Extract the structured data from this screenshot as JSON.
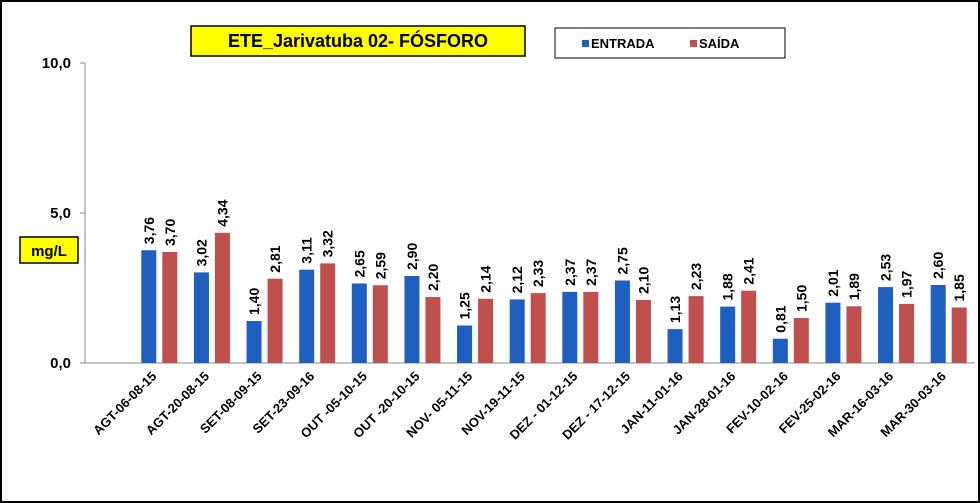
{
  "chart_data": {
    "type": "bar",
    "title": "ETE_Jarivatuba 02- FÓSFORO",
    "y_label": "mg/L",
    "categories": [
      "AGT-06-08-15",
      "AGT-20-08-15",
      "SET-08-09-15",
      "SET-23-09-16",
      "OUT -05-10-15",
      "OUT -20-10-15",
      "NOV- 05-11-15",
      "NOV-19-11-15",
      "DEZ - 01-12-15",
      "DEZ - 17-12-15",
      "JAN-11-01-16",
      "JAN-28-01-16",
      "FEV-10-02-16",
      "FEV-25-02-16",
      "MAR-16-03-16",
      "MAR-30-03-16"
    ],
    "series": [
      {
        "name": "ENTRADA",
        "color": "#1f5fbf",
        "values": [
          3.76,
          3.02,
          1.4,
          3.11,
          2.65,
          2.9,
          1.25,
          2.12,
          2.37,
          2.75,
          1.13,
          1.88,
          0.81,
          2.01,
          2.53,
          2.6
        ],
        "value_labels": [
          "3,76",
          "3,02",
          "1,40",
          "3,11",
          "2,65",
          "2,90",
          "1,25",
          "2,12",
          "2,37",
          "2,75",
          "1,13",
          "1,88",
          "0,81",
          "2,01",
          "2,53",
          "2,60"
        ]
      },
      {
        "name": "SAÍDA",
        "color": "#c0504d",
        "values": [
          3.7,
          4.34,
          2.81,
          3.32,
          2.59,
          2.2,
          2.14,
          2.33,
          2.37,
          2.1,
          2.23,
          2.41,
          1.5,
          1.89,
          1.97,
          1.85
        ],
        "value_labels": [
          "3,70",
          "4,34",
          "2,81",
          "3,32",
          "2,59",
          "2,20",
          "2,14",
          "2,33",
          "2,37",
          "2,10",
          "2,23",
          "2,41",
          "1,50",
          "1,89",
          "1,97",
          "1,85"
        ]
      }
    ],
    "ylim": [
      0,
      10
    ],
    "yticks": [
      {
        "value": 0,
        "label": "0,0"
      },
      {
        "value": 5,
        "label": "5,0"
      },
      {
        "value": 10,
        "label": "10,0"
      }
    ],
    "grid": false,
    "legend": "top"
  }
}
